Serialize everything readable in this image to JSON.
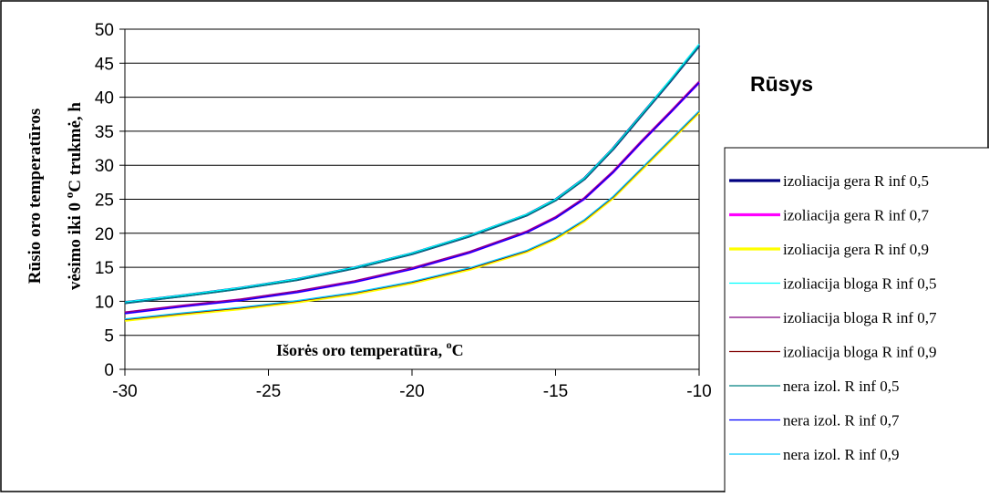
{
  "chart_data": {
    "type": "line",
    "title": "Rūsys",
    "xlabel": "Išorės oro temperatūra, °C",
    "xlabel_main": "Išorės oro temperatūra, ",
    "xlabel_deg": "o",
    "xlabel_unit": "C",
    "ylabel_line1": "Rūsio oro temperatūros",
    "ylabel_line2_a": "vėsimo iki 0  ",
    "ylabel_line2_deg": "o",
    "ylabel_line2_b": "C trukmė, h",
    "xlim": [
      -30,
      -10
    ],
    "ylim": [
      0,
      50
    ],
    "xticks": [
      -30,
      -25,
      -20,
      -15,
      -10
    ],
    "yticks": [
      0,
      5,
      10,
      15,
      20,
      25,
      30,
      35,
      40,
      45,
      50
    ],
    "grid": "horizontal",
    "legend_position": "right",
    "x": [
      -30,
      -28,
      -26,
      -24,
      -22,
      -20,
      -18,
      -16,
      -15,
      -14,
      -13,
      -12,
      -11,
      -10
    ],
    "series": [
      {
        "name": "izoliacija gera R inf 0,5",
        "color": "#000080",
        "width": 3.2,
        "values": [
          9.8,
          10.8,
          11.9,
          13.2,
          14.9,
          17.0,
          19.6,
          22.7,
          24.9,
          28.0,
          32.4,
          37.4,
          42.4,
          47.6
        ]
      },
      {
        "name": "izoliacija gera R inf 0,7",
        "color": "#ff00ff",
        "width": 3.2,
        "values": [
          8.3,
          9.3,
          10.2,
          11.4,
          12.9,
          14.8,
          17.2,
          20.2,
          22.3,
          25.1,
          29.0,
          33.5,
          37.8,
          42.2
        ]
      },
      {
        "name": "izoliacija gera R inf 0,9",
        "color": "#ffff00",
        "width": 3.2,
        "values": [
          7.2,
          8.1,
          8.9,
          9.9,
          11.1,
          12.7,
          14.7,
          17.3,
          19.2,
          21.8,
          25.2,
          29.4,
          33.6,
          37.8
        ]
      },
      {
        "name": "izoliacija bloga R inf 0,5",
        "color": "#00ffff",
        "width": 1.3,
        "values": [
          9.9,
          10.9,
          12.0,
          13.3,
          15.0,
          17.1,
          19.7,
          22.8,
          25.0,
          28.1,
          32.5,
          37.5,
          42.6,
          47.8
        ]
      },
      {
        "name": "izoliacija bloga R inf 0,7",
        "color": "#800080",
        "width": 1.3,
        "values": [
          8.4,
          9.4,
          10.3,
          11.5,
          13.0,
          14.9,
          17.3,
          20.3,
          22.4,
          25.2,
          29.1,
          33.6,
          37.9,
          42.3
        ]
      },
      {
        "name": "izoliacija bloga R inf 0,9",
        "color": "#800000",
        "width": 1.3,
        "values": [
          7.3,
          8.2,
          9.0,
          10.0,
          11.2,
          12.8,
          14.8,
          17.4,
          19.3,
          21.9,
          25.3,
          29.5,
          33.7,
          37.9
        ]
      },
      {
        "name": "nera izol. R inf 0,5",
        "color": "#008080",
        "width": 1.3,
        "values": [
          9.7,
          10.7,
          11.8,
          13.1,
          14.8,
          16.9,
          19.5,
          22.6,
          24.8,
          27.9,
          32.3,
          37.3,
          42.3,
          47.5
        ]
      },
      {
        "name": "nera izol. R inf 0,7",
        "color": "#0000ff",
        "width": 1.3,
        "values": [
          8.2,
          9.2,
          10.1,
          11.3,
          12.8,
          14.7,
          17.1,
          20.1,
          22.2,
          25.0,
          28.9,
          33.4,
          37.7,
          42.1
        ]
      },
      {
        "name": "nera izol. R inf 0,9",
        "color": "#00ccff",
        "width": 1.3,
        "values": [
          7.4,
          8.3,
          9.1,
          10.1,
          11.3,
          12.9,
          14.9,
          17.5,
          19.4,
          22.0,
          25.4,
          29.6,
          33.8,
          38.0
        ]
      }
    ]
  }
}
